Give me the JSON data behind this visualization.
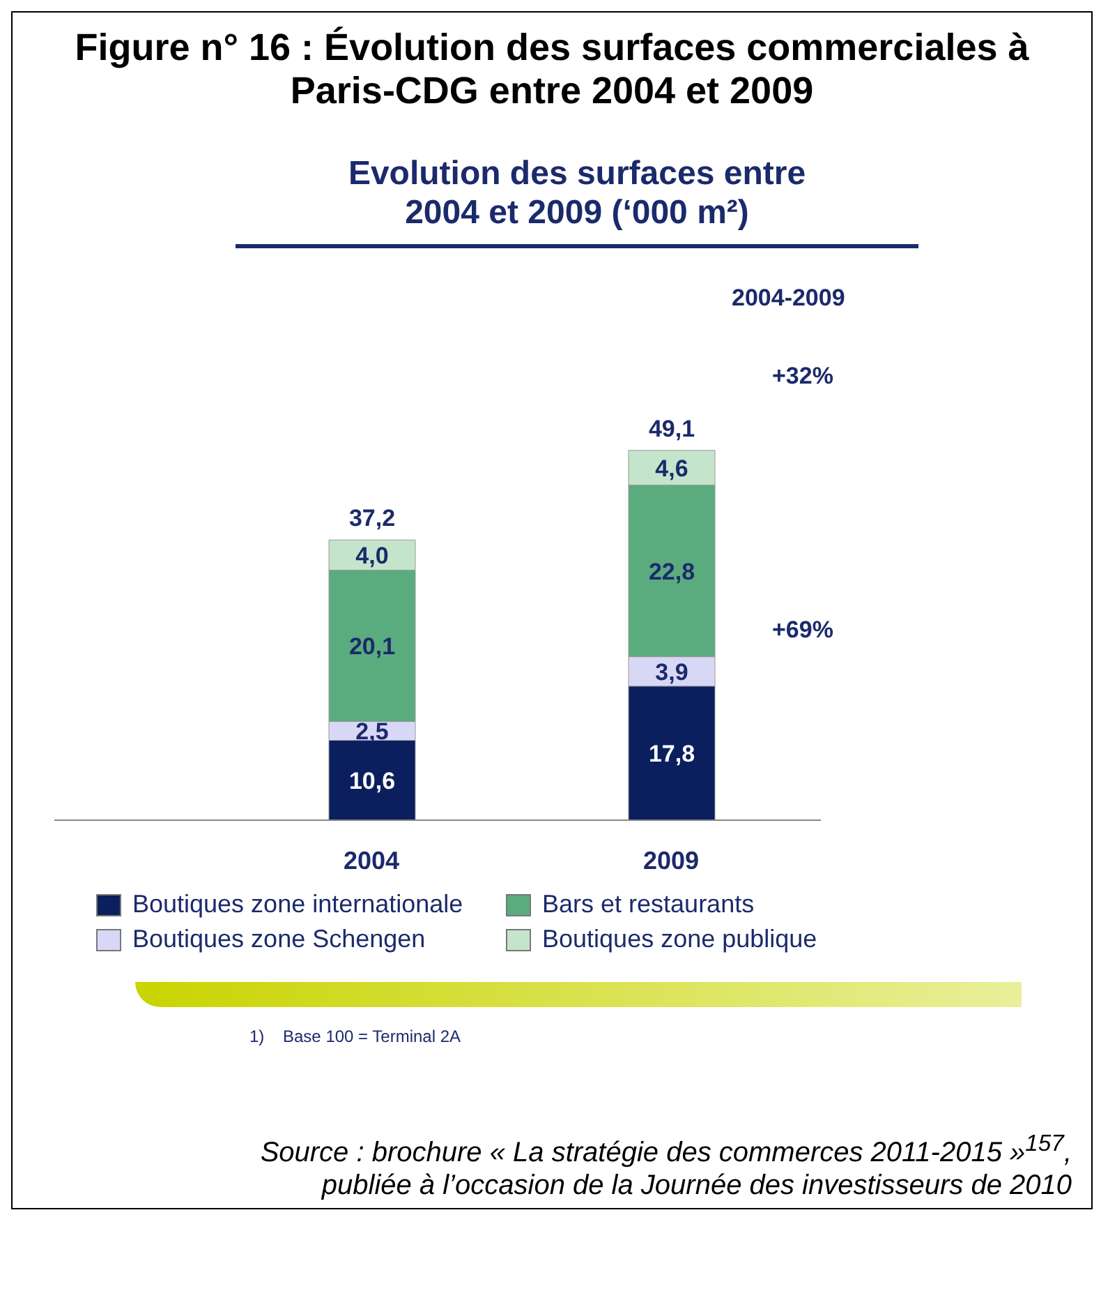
{
  "chart_data": {
    "type": "bar",
    "title": "Figure n° 16 : Évolution des surfaces commerciales à Paris-CDG entre 2004 et 2009",
    "subtitle": "Evolution des surfaces entre 2004 et 2009 (‘000 m²)",
    "categories": [
      "2004",
      "2009"
    ],
    "stacked": true,
    "series": [
      {
        "name": "Boutiques zone internationale",
        "color": "#0b1f5e",
        "values": [
          10.6,
          17.8
        ],
        "value_labels": [
          "10,6",
          "17,8"
        ]
      },
      {
        "name": "Boutiques zone Schengen",
        "color": "#d8d8f6",
        "values": [
          2.5,
          3.9
        ],
        "value_labels": [
          "2,5",
          "3,9"
        ]
      },
      {
        "name": "Bars et restaurants",
        "color": "#5aac7e",
        "values": [
          20.1,
          22.8
        ],
        "value_labels": [
          "20,1",
          "22,8"
        ]
      },
      {
        "name": "Boutiques zone publique",
        "color": "#c4e5cb",
        "values": [
          4.0,
          4.6
        ],
        "value_labels": [
          "4,0",
          "4,6"
        ]
      }
    ],
    "totals": [
      "37,2",
      "49,1"
    ],
    "legend": "bottom",
    "annotations": [
      "2004-2009",
      "+32%",
      "+69%",
      "1)    Base 100 = Terminal 2A",
      "Source : brochure « La stratégie des commerces 2011-2015 »$^{157}$, publiée à l’occasion de la Journée des investisseurs de 2010"
    ]
  }
}
